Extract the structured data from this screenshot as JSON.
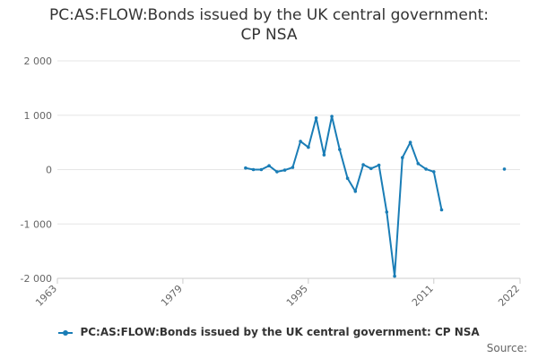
{
  "title_line1": "PC:AS:FLOW:Bonds issued by the UK central government:",
  "title_line2": "CP NSA",
  "source_label": "Source:",
  "colors": {
    "series": "#1a7db6",
    "grid": "#e6e6e6",
    "axis": "#cccccc",
    "text": "#666666"
  },
  "chart_data": {
    "type": "line",
    "title": "PC:AS:FLOW:Bonds issued by the UK central government: CP NSA",
    "xlabel": "",
    "ylabel": "",
    "xlim": [
      1963,
      2022
    ],
    "ylim": [
      -2000,
      2000
    ],
    "x_ticks": [
      1963,
      1979,
      1995,
      2011,
      2022
    ],
    "y_ticks": [
      {
        "value": 2000,
        "label": "2 000"
      },
      {
        "value": 1000,
        "label": "1 000"
      },
      {
        "value": 0,
        "label": "0"
      },
      {
        "value": -1000,
        "label": "-1 000"
      },
      {
        "value": -2000,
        "label": "-2 000"
      }
    ],
    "grid": true,
    "legend_position": "bottom",
    "series": [
      {
        "name": "PC:AS:FLOW:Bonds issued by the UK central government: CP NSA",
        "x": [
          1987,
          1988,
          1989,
          1990,
          1991,
          1992,
          1993,
          1994,
          1995,
          1996,
          1997,
          1998,
          1999,
          2000,
          2001,
          2002,
          2003,
          2004,
          2005,
          2006,
          2007,
          2008,
          2009,
          2010,
          2011,
          2012,
          null,
          2020
        ],
        "y": [
          30,
          0,
          0,
          70,
          -40,
          -10,
          40,
          520,
          410,
          950,
          270,
          980,
          370,
          -160,
          -400,
          90,
          20,
          80,
          -780,
          -1960,
          220,
          500,
          110,
          10,
          -40,
          -740,
          null,
          10
        ]
      }
    ]
  }
}
